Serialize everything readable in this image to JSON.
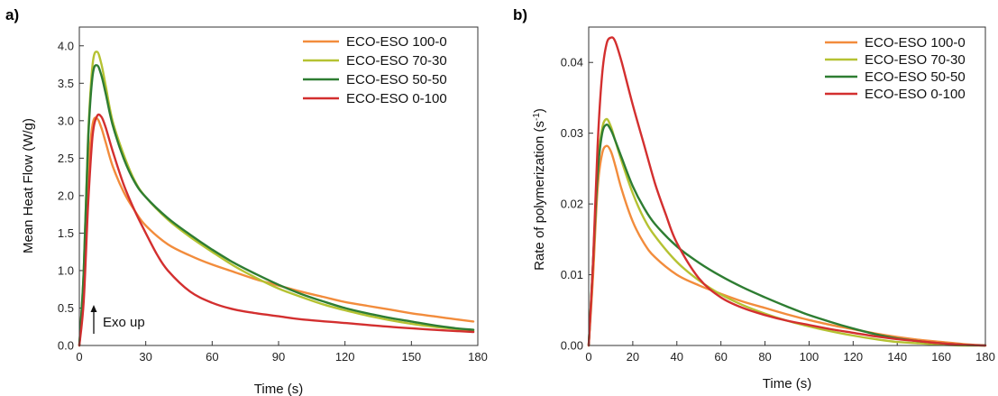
{
  "chart_data": [
    {
      "panel_label": "a)",
      "type": "line",
      "xlabel": "Time (s)",
      "ylabel": "Mean Heat Flow (W/g)",
      "xlim": [
        0,
        180
      ],
      "ylim": [
        0,
        4.25
      ],
      "xticks": [
        0,
        30,
        60,
        90,
        120,
        150,
        180
      ],
      "yticks": [
        0.0,
        0.5,
        1.0,
        1.5,
        2.0,
        2.5,
        3.0,
        3.5,
        4.0
      ],
      "ytick_labels": [
        "0.0",
        "0.5",
        "1.0",
        "1.5",
        "2.0",
        "2.5",
        "3.0",
        "3.5",
        "4.0"
      ],
      "legend_position": "top-right",
      "annotation": "Exo up",
      "series": [
        {
          "name": "ECO-ESO 100-0",
          "color": "#F28C3C",
          "x": [
            0,
            2,
            4,
            6,
            8,
            10,
            12,
            15,
            20,
            25,
            30,
            40,
            50,
            60,
            70,
            80,
            90,
            100,
            110,
            120,
            130,
            140,
            150,
            160,
            170,
            178
          ],
          "y": [
            0,
            0.8,
            2.3,
            2.95,
            3.03,
            2.9,
            2.7,
            2.4,
            2.05,
            1.8,
            1.6,
            1.35,
            1.2,
            1.08,
            0.98,
            0.88,
            0.8,
            0.72,
            0.65,
            0.58,
            0.53,
            0.48,
            0.43,
            0.39,
            0.35,
            0.32
          ]
        },
        {
          "name": "ECO-ESO 70-30",
          "color": "#B5C232",
          "x": [
            0,
            2,
            4,
            6,
            8,
            10,
            12,
            15,
            20,
            25,
            30,
            40,
            50,
            60,
            70,
            80,
            90,
            100,
            110,
            120,
            130,
            140,
            150,
            160,
            170,
            178
          ],
          "y": [
            0,
            1.0,
            2.8,
            3.75,
            3.92,
            3.75,
            3.45,
            3.0,
            2.55,
            2.2,
            1.98,
            1.68,
            1.45,
            1.25,
            1.06,
            0.9,
            0.76,
            0.65,
            0.55,
            0.47,
            0.4,
            0.34,
            0.29,
            0.25,
            0.22,
            0.19
          ]
        },
        {
          "name": "ECO-ESO 50-50",
          "color": "#2E7D32",
          "x": [
            0,
            2,
            4,
            6,
            8,
            10,
            12,
            15,
            20,
            25,
            30,
            40,
            50,
            60,
            70,
            80,
            90,
            100,
            110,
            120,
            130,
            140,
            150,
            160,
            170,
            178
          ],
          "y": [
            0,
            1.0,
            2.75,
            3.6,
            3.74,
            3.6,
            3.35,
            2.95,
            2.5,
            2.18,
            1.98,
            1.7,
            1.48,
            1.28,
            1.1,
            0.95,
            0.81,
            0.69,
            0.59,
            0.5,
            0.43,
            0.37,
            0.32,
            0.27,
            0.23,
            0.21
          ]
        },
        {
          "name": "ECO-ESO 0-100",
          "color": "#D32F2F",
          "x": [
            0,
            2,
            4,
            6,
            8,
            10,
            12,
            15,
            20,
            25,
            30,
            35,
            40,
            50,
            60,
            70,
            80,
            90,
            100,
            120,
            140,
            160,
            178
          ],
          "y": [
            0,
            0.6,
            1.9,
            2.8,
            3.06,
            3.05,
            2.9,
            2.6,
            2.15,
            1.8,
            1.5,
            1.22,
            1.0,
            0.72,
            0.57,
            0.48,
            0.43,
            0.39,
            0.35,
            0.3,
            0.25,
            0.21,
            0.18
          ]
        }
      ]
    },
    {
      "panel_label": "b)",
      "type": "line",
      "xlabel": "Time (s)",
      "ylabel": "Rate of polymerization (s",
      "ylabel_sup": "-1",
      "ylabel_tail": ")",
      "xlim": [
        0,
        180
      ],
      "ylim": [
        0,
        0.045
      ],
      "xticks": [
        0,
        20,
        40,
        60,
        80,
        100,
        120,
        140,
        160,
        180
      ],
      "yticks": [
        0.0,
        0.01,
        0.02,
        0.03,
        0.04
      ],
      "ytick_labels": [
        "0.00",
        "0.01",
        "0.02",
        "0.03",
        "0.04"
      ],
      "legend_position": "top-right",
      "series": [
        {
          "name": "ECO-ESO 100-0",
          "color": "#F28C3C",
          "x": [
            0,
            2,
            4,
            6,
            8,
            10,
            12,
            15,
            20,
            25,
            30,
            40,
            50,
            60,
            70,
            80,
            90,
            100,
            110,
            120,
            130,
            140,
            150,
            160,
            170,
            180
          ],
          "y": [
            0,
            0.01,
            0.022,
            0.027,
            0.0282,
            0.0275,
            0.0255,
            0.022,
            0.0175,
            0.0145,
            0.0125,
            0.01,
            0.0085,
            0.0073,
            0.0062,
            0.0053,
            0.0044,
            0.0036,
            0.0029,
            0.0023,
            0.0017,
            0.0012,
            0.0008,
            0.0005,
            0.0002,
            0
          ]
        },
        {
          "name": "ECO-ESO 70-30",
          "color": "#B5C232",
          "x": [
            0,
            2,
            4,
            6,
            8,
            10,
            12,
            15,
            20,
            25,
            30,
            40,
            50,
            60,
            70,
            80,
            90,
            100,
            110,
            120,
            130,
            140,
            150,
            160,
            170,
            180
          ],
          "y": [
            0,
            0.012,
            0.025,
            0.0305,
            0.032,
            0.031,
            0.029,
            0.026,
            0.0215,
            0.018,
            0.0155,
            0.0118,
            0.0092,
            0.0072,
            0.0057,
            0.0045,
            0.0035,
            0.0027,
            0.002,
            0.0014,
            0.0009,
            0.0005,
            0.0003,
            0.0001,
            0,
            0
          ]
        },
        {
          "name": "ECO-ESO 50-50",
          "color": "#2E7D32",
          "x": [
            0,
            2,
            4,
            6,
            8,
            10,
            12,
            15,
            20,
            25,
            30,
            40,
            50,
            60,
            70,
            80,
            90,
            100,
            110,
            120,
            130,
            140,
            150,
            160,
            170,
            180
          ],
          "y": [
            0,
            0.012,
            0.024,
            0.0298,
            0.0312,
            0.0305,
            0.029,
            0.0265,
            0.0225,
            0.0195,
            0.0172,
            0.014,
            0.0117,
            0.0098,
            0.0082,
            0.0068,
            0.0055,
            0.0043,
            0.0033,
            0.0024,
            0.0016,
            0.001,
            0.0006,
            0.0003,
            0.0001,
            0
          ]
        },
        {
          "name": "ECO-ESO 0-100",
          "color": "#D32F2F",
          "x": [
            0,
            2,
            4,
            6,
            8,
            10,
            12,
            15,
            20,
            25,
            30,
            35,
            40,
            50,
            60,
            70,
            80,
            90,
            100,
            110,
            120,
            130,
            140,
            150,
            160,
            170,
            180
          ],
          "y": [
            0,
            0.012,
            0.028,
            0.038,
            0.0425,
            0.0435,
            0.043,
            0.04,
            0.034,
            0.0285,
            0.023,
            0.0185,
            0.0145,
            0.0095,
            0.0068,
            0.0053,
            0.0043,
            0.0035,
            0.0029,
            0.0023,
            0.0018,
            0.0013,
            0.0009,
            0.0006,
            0.0003,
            0.0001,
            0
          ]
        }
      ]
    }
  ]
}
